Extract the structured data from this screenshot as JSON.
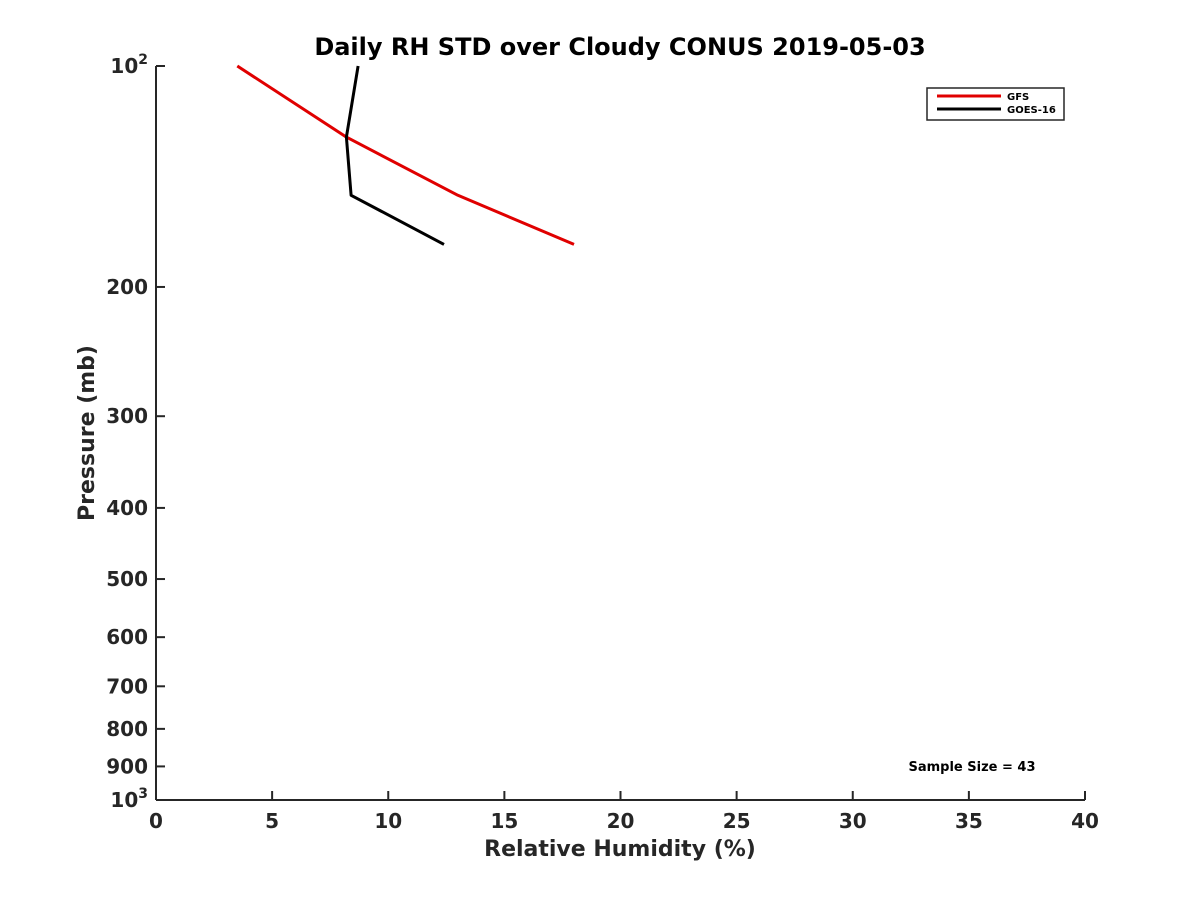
{
  "chart_data": {
    "type": "line",
    "title": "Daily RH STD over Cloudy CONUS 2019-05-03",
    "xlabel": "Relative Humidity (%)",
    "ylabel": "Pressure (mb)",
    "xlim": [
      0,
      40
    ],
    "ylim": [
      100,
      1000
    ],
    "y_scale": "log",
    "y_reversed": true,
    "x_ticks": [
      "0",
      "5",
      "10",
      "15",
      "20",
      "25",
      "30",
      "35",
      "40"
    ],
    "y_ticks": [
      {
        "value": 100,
        "label": "10",
        "exponent": "2"
      },
      {
        "value": 200,
        "label": "200"
      },
      {
        "value": 300,
        "label": "300"
      },
      {
        "value": 400,
        "label": "400"
      },
      {
        "value": 500,
        "label": "500"
      },
      {
        "value": 600,
        "label": "600"
      },
      {
        "value": 700,
        "label": "700"
      },
      {
        "value": 800,
        "label": "800"
      },
      {
        "value": 900,
        "label": "900"
      },
      {
        "value": 1000,
        "label": "10",
        "exponent": "3"
      }
    ],
    "grid": false,
    "legend_position": "top-right",
    "series": [
      {
        "name": "GFS",
        "color": "#e00000",
        "x": [
          3.5,
          8.2,
          13.0,
          18.0
        ],
        "y": [
          100,
          125,
          150,
          175
        ]
      },
      {
        "name": "GOES-16",
        "color": "#000000",
        "x": [
          8.7,
          8.2,
          8.4,
          12.4
        ],
        "y": [
          100,
          125,
          150,
          175
        ]
      }
    ],
    "annotations": [
      "Sample Size = 43"
    ]
  }
}
